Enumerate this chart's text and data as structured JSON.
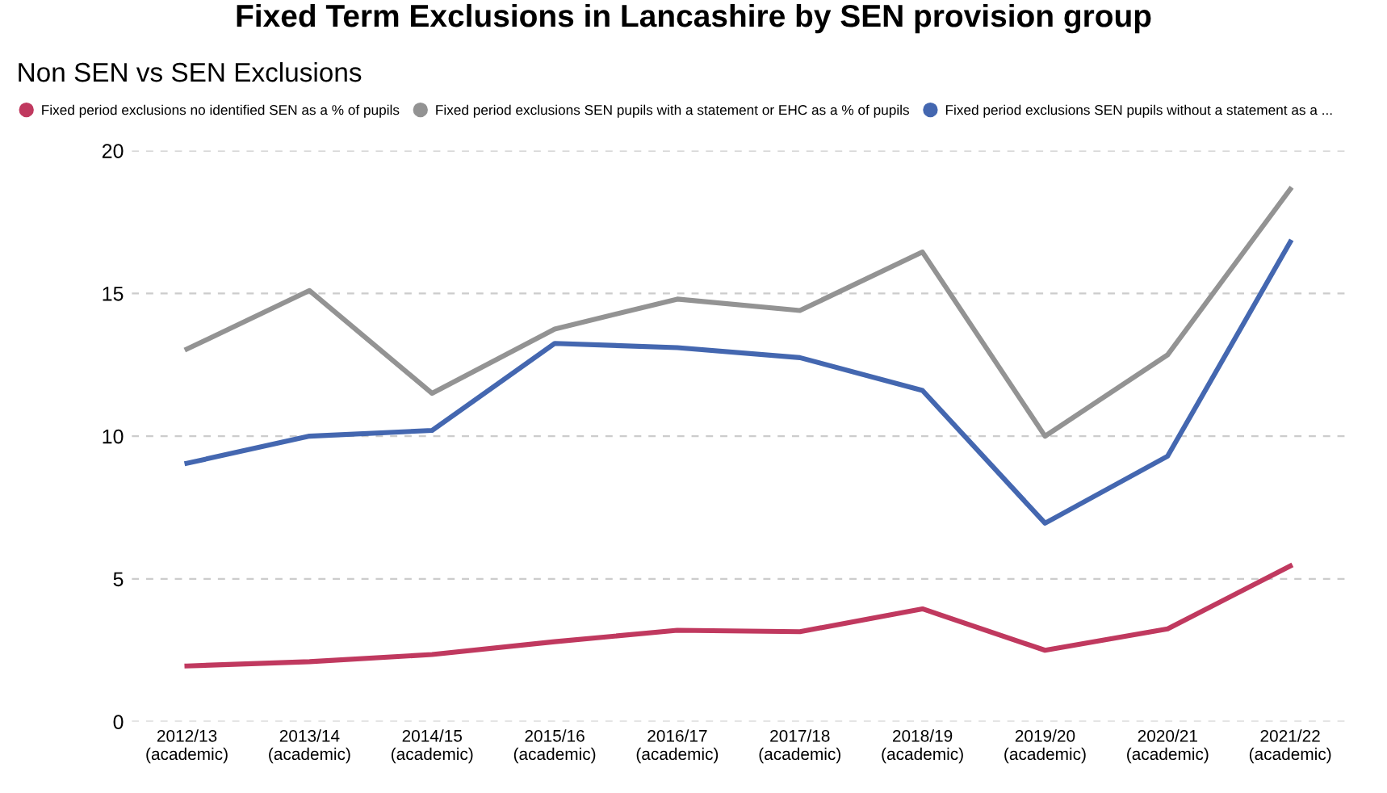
{
  "chart_data": {
    "type": "line",
    "title": "Fixed Term Exclusions in Lancashire by SEN provision group",
    "subtitle": "Non SEN vs SEN Exclusions",
    "categories": [
      "2012/13\n(academic)",
      "2013/14\n(academic)",
      "2014/15\n(academic)",
      "2015/16\n(academic)",
      "2016/17\n(academic)",
      "2017/18\n(academic)",
      "2018/19\n(academic)",
      "2019/20\n(academic)",
      "2020/21\n(academic)",
      "2021/22\n(academic)"
    ],
    "series": [
      {
        "name": "Fixed period exclusions no identified SEN as a % of pupils",
        "color": "#c0395f",
        "values": [
          1.95,
          2.1,
          2.35,
          2.8,
          3.2,
          3.15,
          3.95,
          2.5,
          3.25,
          5.45
        ]
      },
      {
        "name": "Fixed period exclusions SEN pupils with a statement or EHC as a % of pupils",
        "color": "#939393",
        "values": [
          13.05,
          15.1,
          11.5,
          13.75,
          14.8,
          14.4,
          16.45,
          10.0,
          12.85,
          18.65
        ]
      },
      {
        "name": "Fixed period exclusions SEN pupils without a statement as a ...",
        "color": "#4467b0",
        "values": [
          9.05,
          10.0,
          10.2,
          13.25,
          13.1,
          12.75,
          11.6,
          6.95,
          9.3,
          16.8
        ]
      }
    ],
    "ylim": [
      0,
      20
    ],
    "yticks": [
      0,
      5,
      10,
      15,
      20
    ],
    "grid": "y",
    "legend": "top",
    "marker": "none",
    "line_style": "solid"
  }
}
